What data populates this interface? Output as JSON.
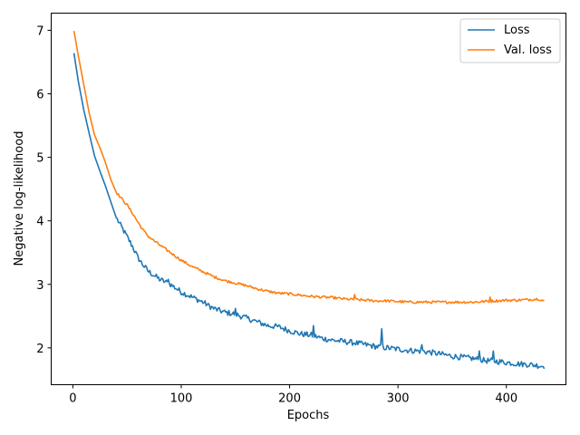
{
  "chart_data": {
    "type": "line",
    "xlabel": "Epochs",
    "ylabel": "Negative log-likelihood",
    "xlim": [
      -20,
      455
    ],
    "ylim": [
      1.42,
      7.27
    ],
    "xticks": [
      0,
      100,
      200,
      300,
      400
    ],
    "yticks": [
      2,
      3,
      4,
      5,
      6,
      7
    ],
    "legend": "top-right",
    "grid": false,
    "series": [
      {
        "name": "Loss",
        "color": "#1f77b4",
        "noise": 0.045,
        "points": [
          [
            1,
            6.64
          ],
          [
            5,
            6.2
          ],
          [
            10,
            5.75
          ],
          [
            15,
            5.38
          ],
          [
            20,
            5.02
          ],
          [
            25,
            4.78
          ],
          [
            30,
            4.55
          ],
          [
            35,
            4.3
          ],
          [
            40,
            4.05
          ],
          [
            45,
            3.9
          ],
          [
            50,
            3.75
          ],
          [
            55,
            3.6
          ],
          [
            60,
            3.42
          ],
          [
            65,
            3.3
          ],
          [
            70,
            3.2
          ],
          [
            80,
            3.08
          ],
          [
            90,
            3.0
          ],
          [
            100,
            2.88
          ],
          [
            110,
            2.8
          ],
          [
            120,
            2.72
          ],
          [
            130,
            2.62
          ],
          [
            140,
            2.56
          ],
          [
            150,
            2.53
          ],
          [
            160,
            2.47
          ],
          [
            170,
            2.41
          ],
          [
            180,
            2.35
          ],
          [
            190,
            2.33
          ],
          [
            200,
            2.27
          ],
          [
            210,
            2.22
          ],
          [
            220,
            2.2
          ],
          [
            230,
            2.15
          ],
          [
            240,
            2.12
          ],
          [
            250,
            2.1
          ],
          [
            260,
            2.08
          ],
          [
            270,
            2.05
          ],
          [
            280,
            2.02
          ],
          [
            290,
            2.0
          ],
          [
            300,
            1.98
          ],
          [
            310,
            1.96
          ],
          [
            320,
            1.95
          ],
          [
            330,
            1.93
          ],
          [
            340,
            1.9
          ],
          [
            350,
            1.87
          ],
          [
            360,
            1.85
          ],
          [
            370,
            1.83
          ],
          [
            380,
            1.8
          ],
          [
            390,
            1.79
          ],
          [
            400,
            1.77
          ],
          [
            410,
            1.75
          ],
          [
            420,
            1.74
          ],
          [
            430,
            1.72
          ],
          [
            435,
            1.71
          ]
        ],
        "spikes": [
          [
            88,
            3.08
          ],
          [
            125,
            2.7
          ],
          [
            150,
            2.62
          ],
          [
            222,
            2.35
          ],
          [
            285,
            2.3
          ],
          [
            322,
            2.05
          ],
          [
            375,
            1.95
          ],
          [
            388,
            1.95
          ]
        ]
      },
      {
        "name": "Val. loss",
        "color": "#ff7f0e",
        "noise": 0.02,
        "points": [
          [
            1,
            6.99
          ],
          [
            5,
            6.6
          ],
          [
            10,
            6.15
          ],
          [
            15,
            5.7
          ],
          [
            20,
            5.35
          ],
          [
            25,
            5.15
          ],
          [
            30,
            4.92
          ],
          [
            35,
            4.65
          ],
          [
            40,
            4.45
          ],
          [
            45,
            4.35
          ],
          [
            50,
            4.25
          ],
          [
            55,
            4.12
          ],
          [
            60,
            3.98
          ],
          [
            65,
            3.85
          ],
          [
            70,
            3.75
          ],
          [
            80,
            3.62
          ],
          [
            90,
            3.5
          ],
          [
            100,
            3.38
          ],
          [
            110,
            3.28
          ],
          [
            120,
            3.2
          ],
          [
            130,
            3.12
          ],
          [
            140,
            3.06
          ],
          [
            150,
            3.02
          ],
          [
            160,
            2.98
          ],
          [
            170,
            2.93
          ],
          [
            180,
            2.89
          ],
          [
            190,
            2.86
          ],
          [
            200,
            2.85
          ],
          [
            210,
            2.83
          ],
          [
            220,
            2.81
          ],
          [
            230,
            2.8
          ],
          [
            240,
            2.79
          ],
          [
            250,
            2.77
          ],
          [
            260,
            2.76
          ],
          [
            270,
            2.75
          ],
          [
            280,
            2.74
          ],
          [
            290,
            2.74
          ],
          [
            300,
            2.73
          ],
          [
            310,
            2.72
          ],
          [
            320,
            2.72
          ],
          [
            330,
            2.72
          ],
          [
            340,
            2.72
          ],
          [
            350,
            2.72
          ],
          [
            360,
            2.72
          ],
          [
            370,
            2.72
          ],
          [
            380,
            2.73
          ],
          [
            390,
            2.74
          ],
          [
            400,
            2.75
          ],
          [
            410,
            2.75
          ],
          [
            420,
            2.76
          ],
          [
            430,
            2.77
          ],
          [
            435,
            2.74
          ]
        ],
        "spikes": [
          [
            260,
            2.84
          ],
          [
            385,
            2.8
          ]
        ]
      }
    ]
  }
}
